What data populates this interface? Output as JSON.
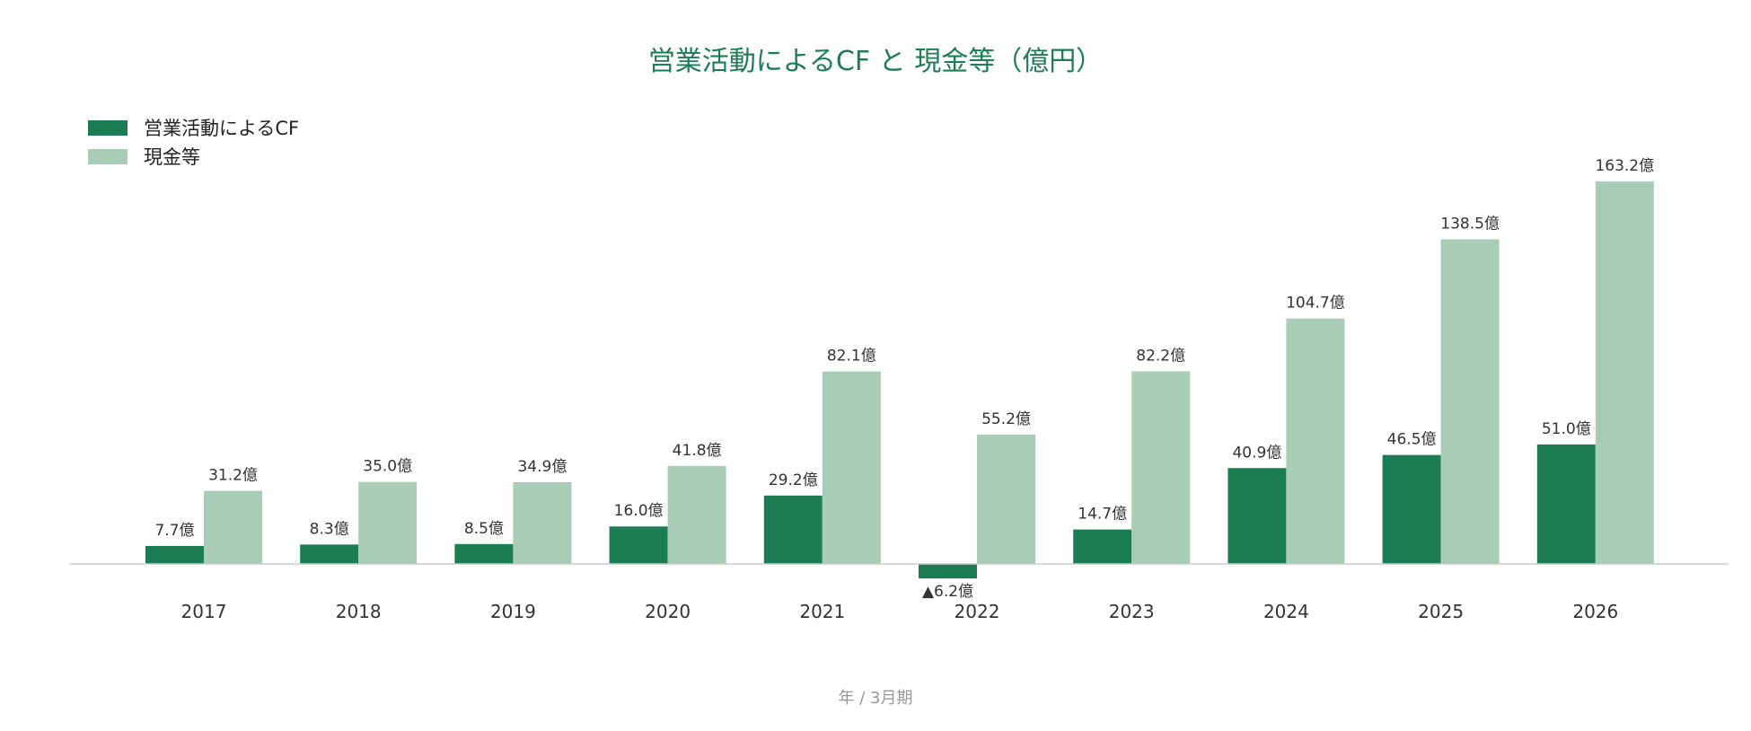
{
  "colors": {
    "primary": "#1c7d55",
    "secondary": "#a8ccb6",
    "title": "#1c7d55",
    "text": "#333333",
    "axis_note": "#999999",
    "baseline": "#cccccc"
  },
  "chart_data": {
    "type": "bar",
    "title": "営業活動によるCF と 現金等（億円）",
    "xlabel": "年 / 3月期",
    "ylabel": "",
    "categories": [
      "2017",
      "2018",
      "2019",
      "2020",
      "2021",
      "2022",
      "2023",
      "2024",
      "2025",
      "2026"
    ],
    "series": [
      {
        "name": "営業活動によるCF",
        "values": [
          7.7,
          8.3,
          8.5,
          16.0,
          29.2,
          -6.2,
          14.7,
          40.9,
          46.5,
          51.0
        ],
        "labels": [
          "7.7億",
          "8.3億",
          "8.5億",
          "16.0億",
          "29.2億",
          "▲6.2億",
          "14.7億",
          "40.9億",
          "46.5億",
          "51.0億"
        ]
      },
      {
        "name": "現金等",
        "values": [
          31.2,
          35.0,
          34.9,
          41.8,
          82.1,
          55.2,
          82.2,
          104.7,
          138.5,
          163.2
        ],
        "labels": [
          "31.2億",
          "35.0億",
          "34.9億",
          "41.8億",
          "82.1億",
          "55.2億",
          "82.2億",
          "104.7億",
          "138.5億",
          "163.2億"
        ]
      }
    ],
    "legend": "top-left",
    "grid": false
  }
}
